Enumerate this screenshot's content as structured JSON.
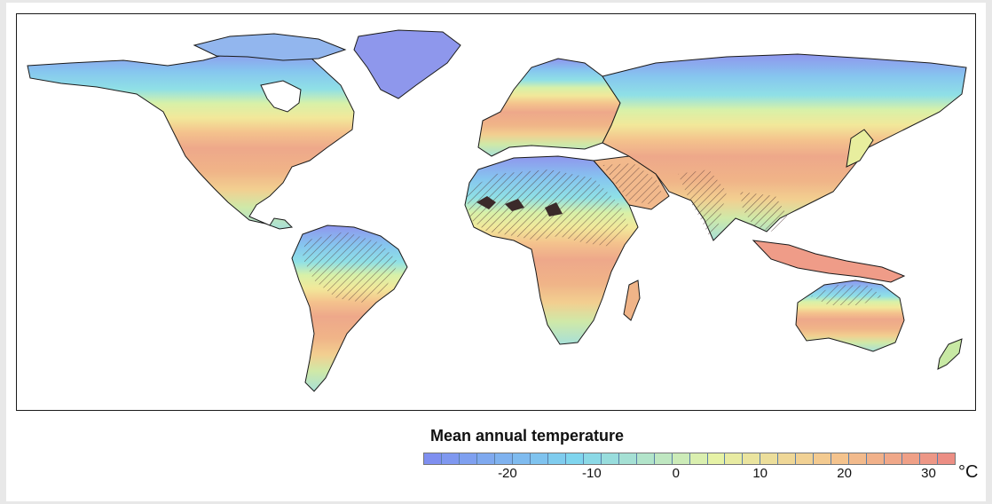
{
  "map": {
    "title": "Mean annual temperature",
    "unit": "°C",
    "legend": {
      "min": -30,
      "max": 33,
      "steps": 30,
      "ticks": [
        "-20",
        "-10",
        "0",
        "10",
        "20",
        "30"
      ],
      "tick_values": [
        -20,
        -10,
        0,
        10,
        20,
        30
      ],
      "colors": {
        "cold": "#7f8ff0",
        "cool": "#7fd6ee",
        "mild": "#e6f2a6",
        "warm": "#f4c68e",
        "hot": "#ec8e84"
      }
    },
    "hatching_note_color": "#3a2a2a",
    "border_color": "#1a1a1a",
    "ocean_color": "#ffffff"
  }
}
